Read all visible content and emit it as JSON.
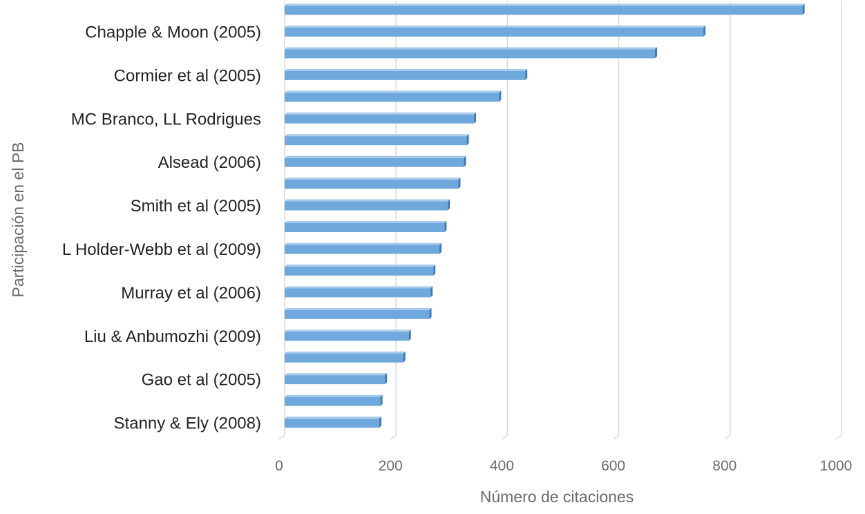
{
  "chart_data": {
    "type": "bar",
    "orientation": "horizontal",
    "style": "3d-clustered-bar",
    "xlabel": "Número de citaciones",
    "ylabel": "Participación en el PB",
    "xlim": [
      0,
      1000
    ],
    "xticks": [
      0,
      200,
      400,
      600,
      800,
      1000
    ],
    "grid": "vertical",
    "bar_color": "#6fa8dc",
    "categories": [
      "",
      "Chapple & Moon (2005)",
      "",
      "Cormier et al (2005)",
      "",
      "MC Branco, LL Rodrigues",
      "",
      "Alsead (2006)",
      "",
      "Smith et al (2005)",
      "",
      "L Holder-Webb et al (2009)",
      "",
      "Murray et al (2006)",
      "",
      "Liu & Anbumozhi (2009)",
      "",
      "Gao et al (2005)",
      "",
      "Stanny & Ely (2008)"
    ],
    "values": [
      930,
      752,
      665,
      432,
      385,
      340,
      327,
      322,
      312,
      293,
      287,
      278,
      267,
      262,
      260,
      223,
      213,
      180,
      172,
      170
    ]
  }
}
